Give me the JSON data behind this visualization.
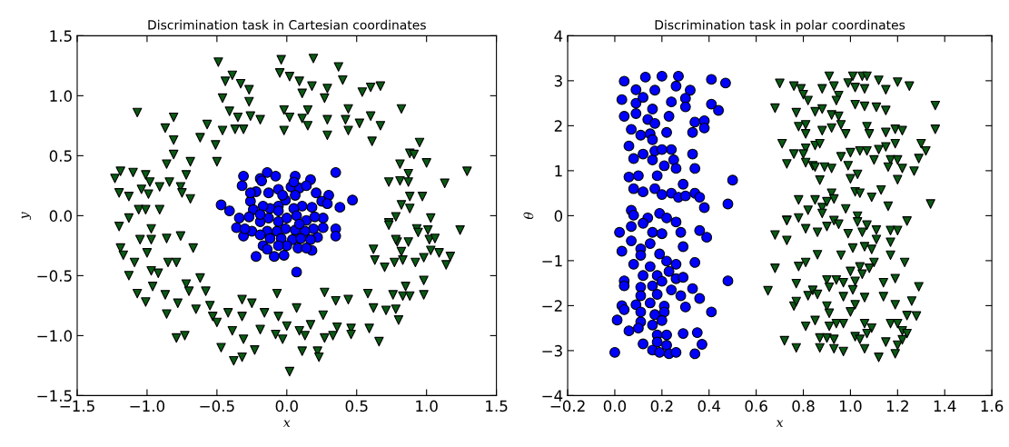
{
  "chart_data": [
    {
      "type": "scatter",
      "title": "Discrimination task in Cartesian coordinates",
      "xlabel": "x",
      "ylabel": "y",
      "xlim": [
        -1.5,
        1.5
      ],
      "ylim": [
        -1.5,
        1.5
      ],
      "xticks": [
        {
          "value": -1.5,
          "label": "−1.5"
        },
        {
          "value": -1.0,
          "label": "−1.0"
        },
        {
          "value": -0.5,
          "label": "−0.5"
        },
        {
          "value": 0.0,
          "label": "0.0"
        },
        {
          "value": 0.5,
          "label": "0.5"
        },
        {
          "value": 1.0,
          "label": "1.0"
        },
        {
          "value": 1.5,
          "label": "1.5"
        }
      ],
      "yticks": [
        {
          "value": -1.5,
          "label": "−1.5"
        },
        {
          "value": -1.0,
          "label": "−1.0"
        },
        {
          "value": -0.5,
          "label": "−0.5"
        },
        {
          "value": 0.0,
          "label": "0.0"
        },
        {
          "value": 0.5,
          "label": "0.5"
        },
        {
          "value": 1.0,
          "label": "1.0"
        },
        {
          "value": 1.5,
          "label": "1.5"
        }
      ],
      "grid": false,
      "series": [
        {
          "color": "#0000ff",
          "marker": "circle",
          "x": [
            -0.47,
            -0.41,
            -0.34,
            -0.36,
            -0.31,
            -0.32,
            -0.31,
            -0.19,
            -0.14,
            -0.18,
            -0.08,
            0.06,
            0.17,
            0.35,
            0.47,
            0.38,
            0.3,
            0.26,
            0.26,
            0.35,
            0.35,
            0.22,
            0.18,
            0.07,
            -0.02,
            -0.09,
            -0.22,
            -0.17,
            -0.14,
            -0.25,
            -0.26,
            -0.22,
            -0.13,
            -0.06,
            0.03,
            0.09,
            0.14,
            0.21,
            0.25,
            0.18,
            0.11,
            0.05,
            -0.01,
            -0.06,
            -0.12,
            -0.17,
            -0.24,
            -0.27,
            -0.19,
            -0.13,
            -0.06,
            0.0,
            0.07,
            0.14,
            0.2,
            0.19,
            0.13,
            0.06,
            -0.01,
            -0.07,
            -0.14,
            -0.19,
            -0.12,
            -0.04,
            0.04,
            0.1,
            0.17,
            0.08,
            0.0,
            -0.06,
            0.06,
            -0.03,
            0.29,
            -0.26,
            -0.06,
            0.09,
            -0.19,
            0.05,
            0.14,
            -0.3
          ],
          "values": [
            0.09,
            0.04,
            -0.02,
            -0.1,
            -0.17,
            0.25,
            0.33,
            0.31,
            0.36,
            0.29,
            0.33,
            0.33,
            0.3,
            0.36,
            0.13,
            0.07,
            0.17,
            -0.02,
            -0.1,
            -0.11,
            -0.17,
            -0.18,
            -0.29,
            -0.47,
            -0.33,
            -0.34,
            -0.34,
            -0.25,
            -0.28,
            -0.13,
            0.12,
            0.2,
            0.19,
            0.22,
            0.24,
            0.23,
            0.25,
            0.19,
            0.12,
            0.07,
            0.08,
            0.06,
            0.13,
            0.08,
            0.06,
            0.08,
            0.05,
            -0.01,
            -0.05,
            -0.02,
            -0.05,
            -0.02,
            0.0,
            -0.04,
            -0.01,
            -0.11,
            -0.13,
            -0.12,
            -0.11,
            -0.13,
            -0.13,
            -0.16,
            -0.19,
            -0.19,
            -0.2,
            -0.19,
            -0.2,
            -0.27,
            -0.25,
            -0.25,
            0.17,
            0.17,
            0.1,
            0.19,
            0.04,
            -0.07,
            0.01,
            0.28,
            -0.27,
            -0.11
          ]
        },
        {
          "color": "#0a5a14",
          "marker": "triangle",
          "x": [
            -0.49,
            -0.04,
            0.19,
            0.37,
            0.4,
            -0.05,
            0.02,
            0.09,
            -0.39,
            -0.44,
            -0.33,
            -0.27,
            0.11,
            0.18,
            0.29,
            0.54,
            0.6,
            0.67,
            0.82,
            -0.46,
            -0.27,
            -0.41,
            -0.35,
            -0.26,
            -0.19,
            -0.02,
            0.02,
            0.11,
            0.15,
            0.15,
            0.27,
            0.29,
            0.44,
            0.42,
            0.52,
            0.6,
            0.67,
            -0.02,
            0.29,
            0.61,
            0.44,
            -1.07,
            -0.81,
            -0.87,
            -0.81,
            -0.81,
            -0.86,
            -0.69,
            -0.57,
            -0.62,
            -0.51,
            -0.5,
            -0.46,
            -0.37,
            -0.31,
            -1.23,
            -1.19,
            -1.1,
            -1.01,
            -0.98,
            -1.2,
            -1.04,
            -0.99,
            -1.13,
            -0.91,
            -0.84,
            -0.76,
            -0.72,
            -0.69,
            -0.75,
            -1.06,
            -1.01,
            -0.91,
            -1.13,
            -1.2,
            -0.97,
            -1.05,
            -0.97,
            -0.86,
            -0.76,
            -0.67,
            -1.19,
            -1.17,
            -1.0,
            -1.09,
            -1.13,
            -0.97,
            -0.92,
            -0.85,
            -0.79,
            -1.07,
            -0.96,
            -0.87,
            -1.01,
            -0.72,
            -0.7,
            -0.62,
            -0.58,
            -0.65,
            -0.78,
            -0.86,
            -0.79,
            -0.73,
            -0.55,
            -0.53,
            -0.5,
            -0.42,
            -0.39,
            -0.47,
            -0.32,
            -0.32,
            -0.25,
            -0.31,
            -0.23,
            -0.38,
            -0.32,
            -0.16,
            -0.19,
            -0.07,
            -0.06,
            -0.08,
            0.0,
            -0.03,
            0.07,
            0.09,
            0.13,
            0.11,
            0.17,
            0.22,
            0.23,
            0.02,
            0.27,
            0.26,
            0.27,
            0.33,
            0.36,
            0.35,
            0.44,
            0.46,
            0.46,
            0.59,
            0.66,
            0.58,
            0.62,
            0.71,
            0.78,
            0.8,
            0.76,
            0.83,
            0.88,
            0.85,
            0.98,
            0.98,
            0.7,
            0.63,
            0.62,
            0.77,
            0.83,
            0.92,
            0.98,
            0.79,
            0.87,
            0.78,
            0.82,
            1.03,
            1.09,
            1.14,
            1.17,
            1.02,
            1.06,
            0.73,
            0.73,
            0.78,
            0.93,
            0.94,
            1.01,
            1.03,
            1.24,
            0.82,
            0.88,
            0.88,
            0.97,
            0.73,
            0.81,
            0.87,
            0.87,
            1.13,
            0.81,
            1.0,
            0.88,
            0.91,
            0.95,
            1.29
          ],
          "values": [
            1.28,
            1.3,
            1.31,
            1.24,
            1.13,
            1.19,
            1.16,
            1.12,
            1.17,
            1.12,
            1.1,
            1.05,
            1.02,
            1.08,
            1.06,
            1.03,
            1.07,
            1.08,
            0.89,
            0.98,
            0.95,
            0.87,
            0.82,
            0.83,
            0.8,
            0.88,
            0.82,
            0.81,
            0.88,
            0.75,
            0.98,
            0.8,
            0.89,
            0.8,
            0.77,
            0.83,
            0.75,
            0.71,
            0.67,
            0.62,
            0.71,
            0.86,
            0.82,
            0.73,
            0.63,
            0.51,
            0.43,
            0.45,
            0.76,
            0.65,
            0.59,
            0.45,
            0.71,
            0.72,
            0.72,
            0.31,
            0.37,
            0.36,
            0.34,
            0.28,
            0.19,
            0.22,
            0.18,
            0.16,
            0.24,
            0.28,
            0.24,
            0.34,
            0.14,
            0.19,
            0.05,
            0.05,
            0.05,
            -0.02,
            -0.09,
            -0.11,
            -0.2,
            -0.2,
            -0.19,
            -0.17,
            -0.27,
            -0.27,
            -0.33,
            -0.31,
            -0.39,
            -0.5,
            -0.46,
            -0.48,
            -0.39,
            -0.39,
            -0.65,
            -0.59,
            -0.66,
            -0.72,
            -0.57,
            -0.63,
            -0.52,
            -0.63,
            -0.78,
            -0.73,
            -0.82,
            -1.02,
            -1.0,
            -0.75,
            -0.84,
            -0.89,
            -0.81,
            -0.96,
            -1.1,
            -0.7,
            -0.84,
            -0.73,
            -1.03,
            -1.12,
            -1.21,
            -1.18,
            -0.81,
            -0.95,
            -0.65,
            -0.84,
            -0.99,
            -0.92,
            -1.03,
            -0.77,
            -0.96,
            -1.0,
            -1.13,
            -0.91,
            -1.13,
            -1.18,
            -1.3,
            -0.64,
            -0.83,
            -1.02,
            -1.0,
            -0.93,
            -0.71,
            -0.7,
            -0.94,
            -0.99,
            -0.94,
            -1.05,
            -0.65,
            -0.77,
            -0.79,
            -0.78,
            -0.87,
            -0.66,
            -0.67,
            -0.67,
            -0.59,
            -0.66,
            -0.54,
            -0.43,
            -0.37,
            -0.28,
            -0.39,
            -0.37,
            -0.39,
            -0.35,
            -0.22,
            -0.22,
            -0.2,
            -0.3,
            -0.29,
            -0.31,
            -0.41,
            -0.34,
            -0.2,
            -0.19,
            -0.06,
            -0.08,
            -0.01,
            -0.11,
            -0.14,
            -0.12,
            -0.02,
            -0.12,
            0.09,
            0.06,
            0.16,
            0.16,
            0.28,
            0.29,
            0.35,
            0.28,
            0.27,
            0.43,
            0.44,
            0.52,
            0.51,
            0.61,
            0.37
          ]
        }
      ]
    },
    {
      "type": "scatter",
      "title": "Discrimination task in polar coordinates",
      "xlabel": "x",
      "ylabel": "θ",
      "xlim": [
        -0.2,
        1.6
      ],
      "ylim": [
        -4,
        4
      ],
      "xticks": [
        {
          "value": -0.2,
          "label": "−0.2"
        },
        {
          "value": 0.0,
          "label": "0.0"
        },
        {
          "value": 0.2,
          "label": "0.2"
        },
        {
          "value": 0.4,
          "label": "0.4"
        },
        {
          "value": 0.6,
          "label": "0.6"
        },
        {
          "value": 0.8,
          "label": "0.8"
        },
        {
          "value": 1.0,
          "label": "1.0"
        },
        {
          "value": 1.2,
          "label": "1.2"
        },
        {
          "value": 1.4,
          "label": "1.4"
        },
        {
          "value": 1.6,
          "label": "1.6"
        }
      ],
      "yticks": [
        {
          "value": -4,
          "label": "−4"
        },
        {
          "value": -3,
          "label": "−3"
        },
        {
          "value": -2,
          "label": "−2"
        },
        {
          "value": -1,
          "label": "−1"
        },
        0,
        1,
        2,
        3,
        4
      ],
      "grid": false,
      "series": [
        {
          "color": "#0000ff",
          "marker": "circle",
          "x": [
            0.04,
            0.03,
            0.04,
            0.07,
            0.06,
            0.13,
            0.2,
            0.27,
            0.41,
            0.47,
            0.09,
            0.17,
            0.26,
            0.32,
            0.09,
            0.12,
            0.16,
            0.24,
            0.3,
            0.3,
            0.41,
            0.44,
            0.09,
            0.14,
            0.23,
            0.17,
            0.33,
            0.34,
            0.38,
            0.38,
            0.11,
            0.15,
            0.22,
            0.16,
            0.08,
            0.12,
            0.16,
            0.17,
            0.2,
            0.24,
            0.33,
            0.25,
            0.21,
            0.26,
            0.34,
            0.06,
            0.1,
            0.18,
            0.29,
            0.5,
            0.08,
            0.12,
            0.17,
            0.2,
            0.24,
            0.27,
            0.3,
            0.34,
            0.36,
            0.38,
            0.48,
            0.07,
            0.08,
            0.14,
            0.19,
            0.22,
            0.26,
            0.02,
            0.07,
            0.12,
            0.16,
            0.2,
            0.28,
            0.36,
            0.39,
            0.03,
            0.07,
            0.11,
            0.11,
            0.15,
            0.19,
            0.08,
            0.15,
            0.22,
            0.26,
            0.29,
            0.34,
            0.23,
            0.04,
            0.04,
            0.12,
            0.18,
            0.26,
            0.29,
            0.48,
            0.11,
            0.16,
            0.2,
            0.33,
            0.11,
            0.18,
            0.24,
            0.28,
            0.36,
            0.03,
            0.09,
            0.15,
            0.21,
            0.3,
            0.04,
            0.11,
            0.17,
            0.21,
            0.41,
            0.01,
            0.11,
            0.16,
            0.2,
            0.06,
            0.1,
            0.18,
            0.22,
            0.29,
            0.35,
            0.12,
            0.18,
            0.22,
            0.37,
            0.0,
            0.16,
            0.19,
            0.23,
            0.26,
            0.34
          ],
          "values": [
            2.99,
            2.58,
            2.21,
            1.92,
            1.55,
            3.08,
            3.1,
            3.1,
            3.03,
            2.95,
            2.8,
            2.79,
            2.88,
            2.79,
            2.5,
            2.63,
            2.37,
            2.53,
            2.61,
            2.42,
            2.48,
            2.34,
            2.27,
            2.14,
            2.21,
            2.05,
            1.85,
            2.08,
            2.11,
            1.95,
            1.79,
            1.82,
            1.85,
            1.69,
            1.27,
            1.37,
            1.24,
            1.44,
            1.47,
            1.47,
            1.37,
            1.24,
            1.11,
            1.05,
            1.05,
            0.86,
            0.89,
            0.89,
            0.7,
            0.79,
            0.6,
            0.53,
            0.6,
            0.47,
            0.5,
            0.41,
            0.44,
            0.5,
            0.41,
            0.18,
            0.26,
            0.12,
            0.01,
            -0.05,
            0.05,
            -0.05,
            -0.14,
            -0.37,
            -0.24,
            -0.17,
            -0.37,
            -0.4,
            -0.37,
            -0.33,
            -0.48,
            -0.79,
            -0.56,
            -0.74,
            -0.88,
            -0.62,
            -0.85,
            -1.08,
            -1.13,
            -1.01,
            -1.08,
            -0.69,
            -1.04,
            -1.24,
            -1.45,
            -1.56,
            -1.33,
            -1.33,
            -1.4,
            -1.37,
            -1.45,
            -1.59,
            -1.56,
            -1.46,
            -1.62,
            -1.78,
            -1.75,
            -1.65,
            -1.78,
            -1.84,
            -2.0,
            -1.98,
            -1.94,
            -2.01,
            -2.03,
            -2.09,
            -2.14,
            -2.2,
            -2.14,
            -2.14,
            -2.32,
            -2.36,
            -2.43,
            -2.33,
            -2.56,
            -2.5,
            -2.65,
            -2.65,
            -2.62,
            -2.6,
            -2.85,
            -2.81,
            -2.88,
            -2.86,
            -3.04,
            -2.99,
            -3.04,
            -3.07,
            -3.04,
            -3.07
          ]
        },
        {
          "color": "#0a5a14",
          "marker": "triangle",
          "x": [
            0.65,
            0.68,
            0.7,
            0.71,
            0.68,
            0.68,
            0.72,
            0.73,
            0.73,
            0.76,
            0.79,
            0.8,
            0.77,
            0.82,
            0.78,
            0.81,
            0.81,
            0.76,
            0.81,
            0.8,
            0.85,
            0.87,
            0.73,
            0.81,
            0.84,
            0.87,
            0.85,
            0.88,
            0.91,
            0.93,
            0.95,
            0.94,
            0.92,
            0.95,
            0.85,
            0.88,
            0.88,
            0.92,
            0.96,
            0.98,
            0.99,
            1.01,
            1.05,
            1.07,
            1.12,
            1.15,
            1.2,
            1.25,
            1.02,
            1.06,
            1.02,
            1.06,
            1.11,
            1.15,
            1.36,
            1.36,
            1.07,
            1.08,
            1.15,
            1.19,
            1.22,
            1.3,
            1.32,
            1.29,
            1.27,
            0.96,
            1.0,
            1.04,
            1.07,
            0.99,
            1.03,
            1.0,
            1.1,
            1.12,
            1.15,
            1.19,
            1.17,
            1.2,
            1.16,
            1.22,
            1.2,
            0.92,
            0.89,
            0.78,
            0.82,
            0.85,
            0.88,
            0.9,
            0.92,
            0.93,
            0.98,
            1.02,
            1.04,
            1.09,
            1.13,
            1.16,
            1.34,
            0.73,
            0.78,
            0.88,
            0.81,
            0.86,
            0.9,
            0.93,
            0.95,
            0.99,
            1.03,
            1.03,
            1.07,
            1.11,
            1.17,
            1.2,
            1.24,
            1.05,
            1.11,
            1.17,
            1.09,
            1.06,
            1.01,
            0.96,
            0.86,
            0.81,
            0.78,
            1.17,
            1.1,
            1.23,
            1.0,
            1.04,
            1.08,
            1.05,
            0.9,
            0.94,
            0.97,
            1.02,
            1.14,
            1.19,
            0.77,
            0.84,
            0.86,
            0.91,
            0.97,
            1.01,
            1.06,
            1.14,
            1.29,
            0.82,
            0.76,
            0.77,
            0.9,
            0.91,
            1.02,
            1.19,
            1.26,
            1.0,
            1.24,
            1.28,
            0.85,
            0.91,
            0.94,
            0.97,
            1.06,
            1.17,
            1.2,
            0.81,
            1.09,
            1.07,
            1.22,
            1.24,
            0.87,
            0.9,
            0.93,
            1.02,
            1.04,
            1.22,
            1.15,
            1.2,
            0.77,
            0.87,
            0.93,
            0.97,
            1.06,
            1.12,
            1.19
          ],
          "values": [
            -1.67,
            2.39,
            2.94,
            1.6,
            -0.43,
            -1.17,
            -2.78,
            -0.55,
            -0.1,
            2.88,
            2.82,
            2.69,
            2.29,
            2.56,
            1.98,
            2.02,
            1.82,
            1.37,
            1.5,
            1.37,
            1.56,
            1.6,
            1.15,
            1.18,
            1.11,
            0.79,
            1.08,
            2.82,
            3.1,
            2.88,
            2.67,
            2.56,
            2.24,
            2.21,
            2.31,
            2.37,
            1.89,
            1.95,
            2.02,
            1.82,
            2.95,
            3.1,
            3.1,
            3.1,
            3.01,
            2.8,
            2.97,
            2.88,
            2.85,
            2.82,
            2.47,
            2.43,
            2.41,
            2.34,
            2.45,
            1.92,
            1.98,
            1.82,
            1.85,
            1.92,
            1.89,
            1.6,
            1.44,
            1.27,
            0.99,
            1.31,
            1.4,
            1.44,
            1.44,
            1.11,
            0.92,
            0.82,
            1.24,
            1.47,
            1.53,
            1.6,
            1.24,
            1.24,
            1.08,
            1.05,
            0.8,
            1.05,
            1.08,
            0.35,
            0.12,
            0.35,
            0.18,
            0.31,
            0.5,
            0.37,
            0.15,
            0.53,
            0.5,
            0.41,
            0.57,
            0.21,
            0.26,
            -0.11,
            -0.05,
            0.05,
            -0.29,
            -0.37,
            -0.24,
            -0.11,
            -0.19,
            -0.4,
            -0.01,
            -0.14,
            -0.21,
            -0.32,
            -0.33,
            -0.33,
            -0.12,
            -0.37,
            -0.53,
            -0.59,
            -0.75,
            -0.69,
            -0.72,
            -0.88,
            -0.87,
            -1.04,
            -1.13,
            -0.88,
            -1.04,
            -1.04,
            -1.24,
            -1.14,
            -1.17,
            -1.3,
            -1.43,
            -1.43,
            -1.49,
            -1.46,
            -1.49,
            -1.4,
            -1.51,
            -1.66,
            -1.75,
            -1.59,
            -1.8,
            -1.65,
            -1.82,
            -1.8,
            -1.58,
            -1.78,
            -2.01,
            -1.91,
            -2.01,
            -2.17,
            -1.98,
            -1.98,
            -1.9,
            -2.14,
            -2.22,
            -2.23,
            -2.33,
            -2.46,
            -2.4,
            -2.4,
            -2.4,
            -2.4,
            -2.4,
            -2.46,
            -2.5,
            -2.62,
            -2.56,
            -2.62,
            -2.72,
            -2.72,
            -2.75,
            -2.69,
            -2.75,
            -2.76,
            -2.81,
            -2.88,
            -2.94,
            -2.94,
            -2.96,
            -3.02,
            -2.96,
            -3.15,
            -3.07
          ]
        }
      ]
    }
  ]
}
